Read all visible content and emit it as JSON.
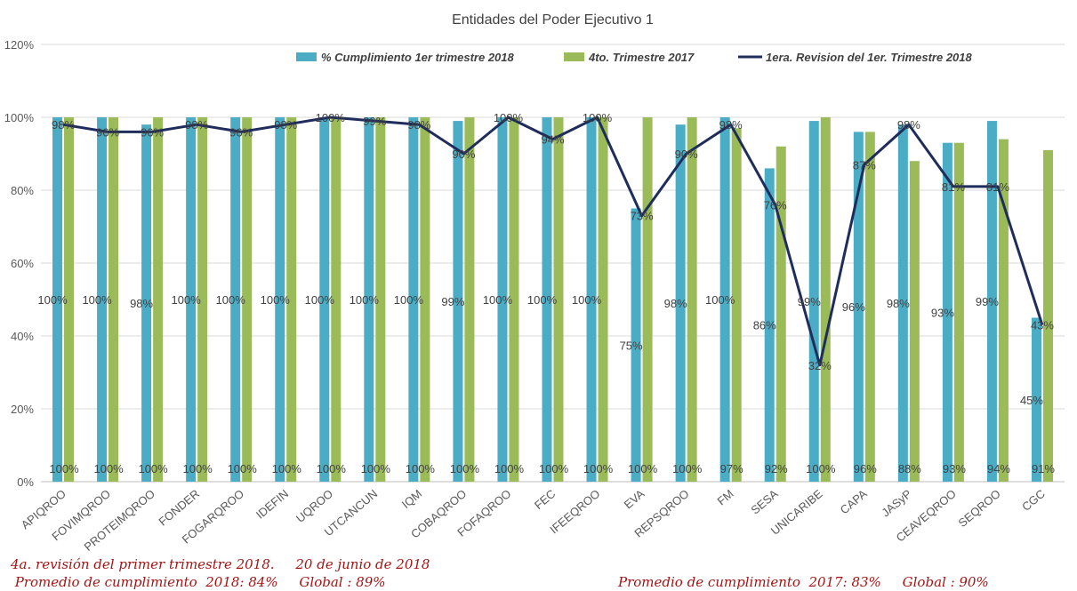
{
  "chart_data": {
    "type": "bar",
    "title": "Entidades del Poder Ejecutivo 1",
    "xlabel": "",
    "ylabel": "",
    "ylim": [
      0,
      120
    ],
    "ytick_labels": [
      "0%",
      "20%",
      "40%",
      "60%",
      "80%",
      "100%",
      "120%"
    ],
    "ytick_values": [
      0,
      20,
      40,
      60,
      80,
      100,
      120
    ],
    "grid": true,
    "legend_position": "top",
    "categories": [
      "APIQROO",
      "FOVIMQROO",
      "PROTEIMQROO",
      "FONDER",
      "FOGARQROO",
      "IDEFIN",
      "UQROO",
      "UTCANCUN",
      "IQM",
      "COBAQROO",
      "FOFAQROO",
      "FEC",
      "IFEEQROO",
      "EVA",
      "REPSQROO",
      "FM",
      "SESA",
      "UNICARIBE",
      "CAPA",
      "JASyP",
      "CEAVEQROO",
      "SEQROO",
      "CGC"
    ],
    "series": [
      {
        "name": "% Cumplimiento 1er trimestre 2018",
        "type": "bar",
        "color": "#4bacc6",
        "values": [
          100,
          100,
          98,
          100,
          100,
          100,
          100,
          100,
          100,
          99,
          100,
          100,
          100,
          75,
          98,
          100,
          86,
          99,
          96,
          98,
          93,
          99,
          45
        ],
        "labels": [
          "100%",
          "100%",
          "98%",
          "100%",
          "100%",
          "100%",
          "100%",
          "100%",
          "100%",
          "99%",
          "100%",
          "100%",
          "100%",
          "75%",
          "98%",
          "100%",
          "86%",
          "99%",
          "96%",
          "98%",
          "93%",
          "99%",
          "45%"
        ]
      },
      {
        "name": "4to. Trimestre 2017",
        "type": "bar",
        "color": "#9bbb59",
        "values": [
          100,
          100,
          100,
          100,
          100,
          100,
          100,
          100,
          100,
          100,
          100,
          100,
          100,
          100,
          100,
          97,
          92,
          100,
          96,
          88,
          93,
          94,
          91
        ],
        "labels": [
          "100%",
          "100%",
          "100%",
          "100%",
          "100%",
          "100%",
          "100%",
          "100%",
          "100%",
          "100%",
          "100%",
          "100%",
          "100%",
          "100%",
          "100%",
          "97%",
          "92%",
          "100%",
          "96%",
          "88%",
          "93%",
          "94%",
          "91%"
        ]
      },
      {
        "name": "1era. Revision del 1er. Trimestre 2018",
        "type": "line",
        "color": "#1f2d5c",
        "values": [
          98,
          96,
          96,
          98,
          96,
          98,
          100,
          99,
          98,
          90,
          100,
          94,
          100,
          73,
          90,
          98,
          76,
          32,
          87,
          98,
          81,
          81,
          43
        ],
        "labels": [
          "98%",
          "96%",
          "96%",
          "98%",
          "96%",
          "98%",
          "100%",
          "99%",
          "98%",
          "90%",
          "100%",
          "94%",
          "100%",
          "73%",
          "90%",
          "98%",
          "76%",
          "32%",
          "87%",
          "98%",
          "81%",
          "81%",
          "43%"
        ]
      }
    ]
  },
  "footer": {
    "note1": "4a. revisión del primer trimestre 2018.     20 de junio de 2018",
    "note2": " Promedio de cumplimiento  2018: 84%     Global : 89%",
    "note3": "Promedio de cumplimiento  2017: 83%     Global : 90%",
    "color": "#a31515"
  }
}
